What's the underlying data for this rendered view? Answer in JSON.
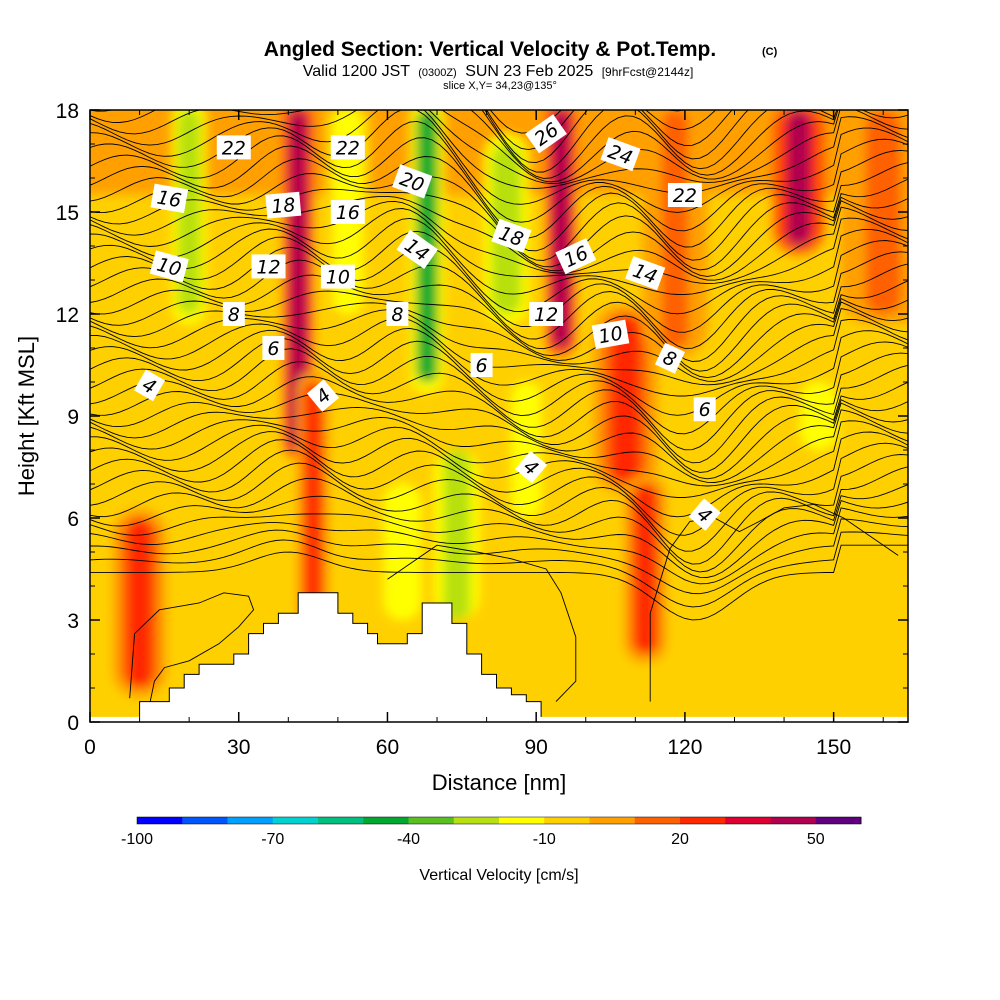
{
  "chart_data": {
    "type": "heatmap",
    "title": "Angled Section: Vertical Velocity & Pot.Temp.",
    "title_suffix": "(C)",
    "subtitle_parts": [
      "Valid 1200 JST",
      "(0300Z)",
      "SUN 23 Feb 2025",
      "[9hrFcst@2144z]"
    ],
    "slice_text": "slice X,Y= 34,23@135°",
    "xlabel": "Distance [nm]",
    "ylabel": "Height [Kft MSL]",
    "xlim": [
      0,
      165
    ],
    "ylim": [
      0,
      18
    ],
    "x_ticks": [
      0,
      30,
      60,
      90,
      120,
      150
    ],
    "y_ticks": [
      0,
      3,
      6,
      9,
      12,
      15,
      18
    ],
    "colorbar": {
      "label": "Vertical Velocity [cm/s]",
      "range": [
        -100,
        60
      ],
      "step": 10,
      "tick_values": [
        -100,
        -70,
        -40,
        -10,
        20,
        50
      ],
      "colors": [
        "#0000ff",
        "#0055ff",
        "#00a0ff",
        "#00d2d2",
        "#00c080",
        "#00a830",
        "#58c020",
        "#b8e010",
        "#ffff00",
        "#ffd000",
        "#ffa000",
        "#ff6000",
        "#ff2800",
        "#e00030",
        "#b00050",
        "#600080"
      ]
    },
    "velocity_features": [
      {
        "x": 10,
        "ymin": 1,
        "ymax": 6,
        "width": 5,
        "value": 25
      },
      {
        "x": 42,
        "ymin": 8,
        "ymax": 18,
        "width": 3,
        "value": 45
      },
      {
        "x": 45,
        "ymin": 3,
        "ymax": 10,
        "width": 3,
        "value": 25
      },
      {
        "x": 20,
        "ymin": 12,
        "ymax": 18,
        "width": 3,
        "value": -30
      },
      {
        "x": 52,
        "ymin": 12,
        "ymax": 18,
        "width": 4,
        "value": -20
      },
      {
        "x": 63,
        "ymin": 3,
        "ymax": 7,
        "width": 5,
        "value": -20
      },
      {
        "x": 68,
        "ymin": 10,
        "ymax": 18,
        "width": 3,
        "value": -45
      },
      {
        "x": 74,
        "ymin": 3,
        "ymax": 8,
        "width": 6,
        "value": -25
      },
      {
        "x": 84,
        "ymin": 12,
        "ymax": 17,
        "width": 4,
        "value": -30
      },
      {
        "x": 88,
        "ymin": 6,
        "ymax": 10,
        "width": 4,
        "value": -20
      },
      {
        "x": 95,
        "ymin": 11,
        "ymax": 18,
        "width": 3,
        "value": 45
      },
      {
        "x": 108,
        "ymin": 7,
        "ymax": 12,
        "width": 6,
        "value": 25
      },
      {
        "x": 112,
        "ymin": 2,
        "ymax": 7,
        "width": 4,
        "value": 25
      },
      {
        "x": 118,
        "ymin": 11,
        "ymax": 18,
        "width": 6,
        "value": 10
      },
      {
        "x": 143,
        "ymin": 14,
        "ymax": 18,
        "width": 5,
        "value": 40
      },
      {
        "x": 147,
        "ymin": 8,
        "ymax": 10,
        "width": 5,
        "value": -20
      },
      {
        "x": 160,
        "ymin": 12,
        "ymax": 18,
        "width": 8,
        "value": 10
      }
    ],
    "theta_contour_levels": [
      4,
      6,
      8,
      10,
      12,
      14,
      16,
      18,
      20,
      22,
      24,
      26
    ],
    "theta_labels": [
      {
        "text": "22",
        "x": 29,
        "y": 16.9,
        "angle": 0
      },
      {
        "text": "22",
        "x": 52,
        "y": 16.9,
        "angle": 0
      },
      {
        "text": "16",
        "x": 16,
        "y": 15.4,
        "angle": 10
      },
      {
        "text": "18",
        "x": 39,
        "y": 15.2,
        "angle": -5
      },
      {
        "text": "20",
        "x": 65,
        "y": 15.9,
        "angle": 20
      },
      {
        "text": "16",
        "x": 52,
        "y": 15.0,
        "angle": 0
      },
      {
        "text": "26",
        "x": 92,
        "y": 17.3,
        "angle": -35
      },
      {
        "text": "24",
        "x": 107,
        "y": 16.7,
        "angle": 20
      },
      {
        "text": "22",
        "x": 120,
        "y": 15.5,
        "angle": 0
      },
      {
        "text": "14",
        "x": 66,
        "y": 13.9,
        "angle": 35
      },
      {
        "text": "18",
        "x": 85,
        "y": 14.3,
        "angle": 20
      },
      {
        "text": "16",
        "x": 98,
        "y": 13.7,
        "angle": -25
      },
      {
        "text": "10",
        "x": 16,
        "y": 13.4,
        "angle": 15
      },
      {
        "text": "12",
        "x": 36,
        "y": 13.4,
        "angle": 0
      },
      {
        "text": "10",
        "x": 50,
        "y": 13.1,
        "angle": 0
      },
      {
        "text": "14",
        "x": 112,
        "y": 13.2,
        "angle": 20
      },
      {
        "text": "8",
        "x": 29,
        "y": 12.0,
        "angle": 0
      },
      {
        "text": "8",
        "x": 62,
        "y": 12.0,
        "angle": 0
      },
      {
        "text": "12",
        "x": 92,
        "y": 12.0,
        "angle": 0
      },
      {
        "text": "10",
        "x": 105,
        "y": 11.4,
        "angle": -10
      },
      {
        "text": "6",
        "x": 37,
        "y": 11.0,
        "angle": 0
      },
      {
        "text": "6",
        "x": 79,
        "y": 10.5,
        "angle": 0
      },
      {
        "text": "8",
        "x": 117,
        "y": 10.7,
        "angle": 25
      },
      {
        "text": "4",
        "x": 12,
        "y": 9.9,
        "angle": 30
      },
      {
        "text": "4",
        "x": 47,
        "y": 9.6,
        "angle": -40
      },
      {
        "text": "6",
        "x": 124,
        "y": 9.2,
        "angle": 0
      },
      {
        "text": "4",
        "x": 89,
        "y": 7.5,
        "angle": 40
      },
      {
        "text": "4",
        "x": 124,
        "y": 6.1,
        "angle": 40
      }
    ],
    "terrain_steps": [
      [
        10,
        0.6
      ],
      [
        13,
        0.6
      ],
      [
        16,
        1.0
      ],
      [
        19,
        1.4
      ],
      [
        22,
        1.7
      ],
      [
        26,
        1.7
      ],
      [
        29,
        2.0
      ],
      [
        32,
        2.6
      ],
      [
        35,
        2.9
      ],
      [
        38,
        3.2
      ],
      [
        42,
        3.8
      ],
      [
        46,
        3.8
      ],
      [
        50,
        3.2
      ],
      [
        53,
        2.9
      ],
      [
        56,
        2.6
      ],
      [
        58,
        2.3
      ],
      [
        61,
        2.3
      ],
      [
        64,
        2.6
      ],
      [
        67,
        3.5
      ],
      [
        70,
        3.5
      ],
      [
        73,
        2.9
      ],
      [
        76,
        2.0
      ],
      [
        79,
        1.4
      ],
      [
        82,
        1.0
      ],
      [
        85,
        0.8
      ],
      [
        88,
        0.6
      ],
      [
        91,
        0.6
      ]
    ]
  }
}
